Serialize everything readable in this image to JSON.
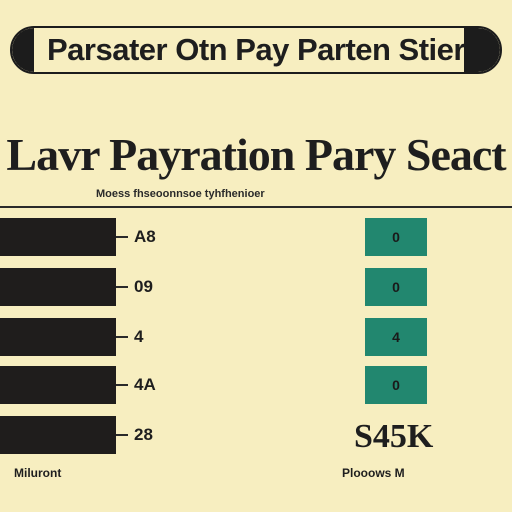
{
  "banner": {
    "title": "Parsater Otn Pay Parten Stier"
  },
  "heading": "Lavr Payration Pary Seact",
  "subheading": "Moess fhseoonnsoe tyhfhenioer",
  "rows": [
    {
      "label": "A8",
      "badge": "0"
    },
    {
      "label": "09",
      "badge": "0"
    },
    {
      "label": "4",
      "badge": "4"
    },
    {
      "label": "4A",
      "badge": "0"
    },
    {
      "label": "28"
    }
  ],
  "total": "S45K",
  "footer": {
    "left": "Miluront",
    "right": "Plooows M"
  },
  "colors": {
    "background": "#f7eec0",
    "bar": "#1f1d1c",
    "badge": "#22876f"
  }
}
